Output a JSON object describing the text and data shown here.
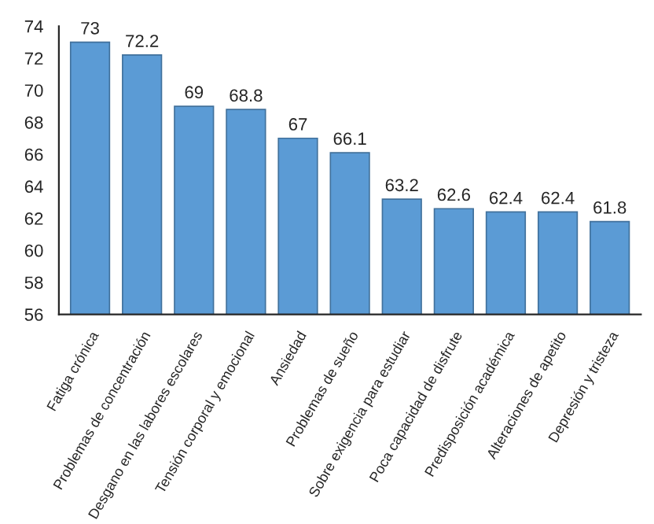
{
  "chart_data": {
    "type": "bar",
    "categories": [
      "Fatiga crónica",
      "Problemas de concentración",
      "Desgano en las labores escolares",
      "Tensión corporal y emocional",
      "Ansiedad",
      "Problemas de sueño",
      "Sobre exigencia para estudiar",
      "Poca capacidad de disfrute",
      "Predisposición académica",
      "Alteraciones de apetito",
      "Depresión y tristeza"
    ],
    "values": [
      73,
      72.2,
      69,
      68.8,
      67,
      66.1,
      63.2,
      62.6,
      62.4,
      62.4,
      61.8
    ],
    "color": "#5b9bd5",
    "ylim": [
      56,
      74
    ],
    "yticks": [
      56,
      58,
      60,
      62,
      64,
      66,
      68,
      70,
      72,
      74
    ],
    "data_labels": true,
    "grid": false,
    "legend": false
  }
}
